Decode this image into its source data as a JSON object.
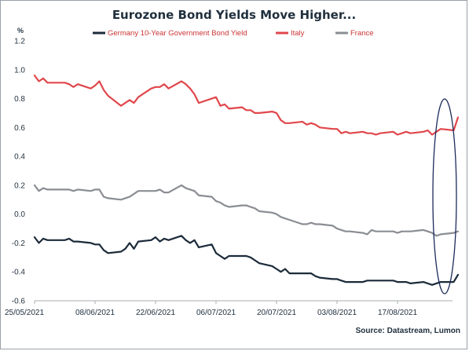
{
  "chart_data": {
    "type": "line",
    "title": "Eurozone Bond Yields Move Higher...",
    "ylabel": "%",
    "source": "Source: Datastream, Lumon",
    "ylim": [
      -0.6,
      1.2
    ],
    "yticks": [
      "1.2",
      "1.0",
      "0.8",
      "0.6",
      "0.4",
      "0.2",
      "0.0",
      "-0.2",
      "-0.4",
      "-0.6"
    ],
    "ytick_values": [
      1.2,
      1.0,
      0.8,
      0.6,
      0.4,
      0.2,
      0.0,
      -0.2,
      -0.4,
      -0.6
    ],
    "xlim": [
      "2021-05-25",
      "2021-08-31"
    ],
    "xticks": [
      "25/05/2021",
      "08/06/2021",
      "22/06/2021",
      "06/07/2021",
      "20/07/2021",
      "03/08/2021",
      "17/08/2021"
    ],
    "xtick_dates": [
      "2021-05-25",
      "2021-06-08",
      "2021-06-22",
      "2021-07-06",
      "2021-07-20",
      "2021-08-03",
      "2021-08-17"
    ],
    "grid": false,
    "legend_position": "top",
    "highlight": "ellipse around latest values",
    "series": [
      {
        "name": "Germany 10-Year Government Bond Yield",
        "color": "#1c2b3a",
        "x": [
          "2021-05-25",
          "2021-05-26",
          "2021-05-27",
          "2021-05-28",
          "2021-05-31",
          "2021-06-01",
          "2021-06-02",
          "2021-06-03",
          "2021-06-04",
          "2021-06-07",
          "2021-06-08",
          "2021-06-09",
          "2021-06-10",
          "2021-06-11",
          "2021-06-14",
          "2021-06-15",
          "2021-06-16",
          "2021-06-17",
          "2021-06-18",
          "2021-06-21",
          "2021-06-22",
          "2021-06-23",
          "2021-06-24",
          "2021-06-25",
          "2021-06-28",
          "2021-06-29",
          "2021-06-30",
          "2021-07-01",
          "2021-07-02",
          "2021-07-05",
          "2021-07-06",
          "2021-07-07",
          "2021-07-08",
          "2021-07-09",
          "2021-07-12",
          "2021-07-13",
          "2021-07-14",
          "2021-07-15",
          "2021-07-16",
          "2021-07-19",
          "2021-07-20",
          "2021-07-21",
          "2021-07-22",
          "2021-07-23",
          "2021-07-26",
          "2021-07-27",
          "2021-07-28",
          "2021-07-29",
          "2021-07-30",
          "2021-08-02",
          "2021-08-03",
          "2021-08-04",
          "2021-08-05",
          "2021-08-06",
          "2021-08-09",
          "2021-08-10",
          "2021-08-11",
          "2021-08-12",
          "2021-08-13",
          "2021-08-16",
          "2021-08-17",
          "2021-08-18",
          "2021-08-19",
          "2021-08-20",
          "2021-08-23",
          "2021-08-24",
          "2021-08-25",
          "2021-08-26",
          "2021-08-27",
          "2021-08-30",
          "2021-08-31"
        ],
        "values": [
          -0.16,
          -0.2,
          -0.17,
          -0.18,
          -0.18,
          -0.18,
          -0.17,
          -0.19,
          -0.19,
          -0.2,
          -0.21,
          -0.21,
          -0.25,
          -0.27,
          -0.26,
          -0.24,
          -0.2,
          -0.24,
          -0.19,
          -0.18,
          -0.16,
          -0.19,
          -0.17,
          -0.18,
          -0.15,
          -0.18,
          -0.2,
          -0.18,
          -0.23,
          -0.21,
          -0.27,
          -0.29,
          -0.31,
          -0.29,
          -0.29,
          -0.29,
          -0.3,
          -0.32,
          -0.34,
          -0.36,
          -0.38,
          -0.4,
          -0.38,
          -0.41,
          -0.41,
          -0.41,
          -0.41,
          -0.43,
          -0.44,
          -0.45,
          -0.45,
          -0.46,
          -0.47,
          -0.47,
          -0.47,
          -0.46,
          -0.46,
          -0.46,
          -0.46,
          -0.46,
          -0.47,
          -0.47,
          -0.47,
          -0.48,
          -0.47,
          -0.48,
          -0.49,
          -0.48,
          -0.47,
          -0.47,
          -0.42
        ]
      },
      {
        "name": "Italy",
        "color": "#e0474c",
        "x": [
          "2021-05-25",
          "2021-05-26",
          "2021-05-27",
          "2021-05-28",
          "2021-05-31",
          "2021-06-01",
          "2021-06-02",
          "2021-06-03",
          "2021-06-04",
          "2021-06-07",
          "2021-06-08",
          "2021-06-09",
          "2021-06-10",
          "2021-06-11",
          "2021-06-14",
          "2021-06-15",
          "2021-06-16",
          "2021-06-17",
          "2021-06-18",
          "2021-06-21",
          "2021-06-22",
          "2021-06-23",
          "2021-06-24",
          "2021-06-25",
          "2021-06-28",
          "2021-06-29",
          "2021-06-30",
          "2021-07-01",
          "2021-07-02",
          "2021-07-05",
          "2021-07-06",
          "2021-07-07",
          "2021-07-08",
          "2021-07-09",
          "2021-07-12",
          "2021-07-13",
          "2021-07-14",
          "2021-07-15",
          "2021-07-16",
          "2021-07-19",
          "2021-07-20",
          "2021-07-21",
          "2021-07-22",
          "2021-07-23",
          "2021-07-26",
          "2021-07-27",
          "2021-07-28",
          "2021-07-29",
          "2021-07-30",
          "2021-08-02",
          "2021-08-03",
          "2021-08-04",
          "2021-08-05",
          "2021-08-06",
          "2021-08-09",
          "2021-08-10",
          "2021-08-11",
          "2021-08-12",
          "2021-08-13",
          "2021-08-16",
          "2021-08-17",
          "2021-08-18",
          "2021-08-19",
          "2021-08-20",
          "2021-08-23",
          "2021-08-24",
          "2021-08-25",
          "2021-08-26",
          "2021-08-27",
          "2021-08-30",
          "2021-08-31"
        ],
        "values": [
          0.96,
          0.92,
          0.94,
          0.91,
          0.91,
          0.91,
          0.9,
          0.88,
          0.9,
          0.87,
          0.89,
          0.92,
          0.86,
          0.82,
          0.75,
          0.77,
          0.79,
          0.77,
          0.81,
          0.87,
          0.88,
          0.88,
          0.9,
          0.87,
          0.92,
          0.9,
          0.87,
          0.83,
          0.77,
          0.8,
          0.81,
          0.75,
          0.76,
          0.73,
          0.74,
          0.72,
          0.72,
          0.7,
          0.7,
          0.71,
          0.7,
          0.65,
          0.63,
          0.63,
          0.64,
          0.62,
          0.63,
          0.62,
          0.6,
          0.59,
          0.59,
          0.56,
          0.57,
          0.56,
          0.57,
          0.56,
          0.56,
          0.55,
          0.56,
          0.57,
          0.55,
          0.56,
          0.57,
          0.56,
          0.57,
          0.58,
          0.55,
          0.57,
          0.59,
          0.58,
          0.67
        ]
      },
      {
        "name": "France",
        "color": "#8a8d93",
        "x": [
          "2021-05-25",
          "2021-05-26",
          "2021-05-27",
          "2021-05-28",
          "2021-05-31",
          "2021-06-01",
          "2021-06-02",
          "2021-06-03",
          "2021-06-04",
          "2021-06-07",
          "2021-06-08",
          "2021-06-09",
          "2021-06-10",
          "2021-06-11",
          "2021-06-14",
          "2021-06-15",
          "2021-06-16",
          "2021-06-17",
          "2021-06-18",
          "2021-06-21",
          "2021-06-22",
          "2021-06-23",
          "2021-06-24",
          "2021-06-25",
          "2021-06-28",
          "2021-06-29",
          "2021-06-30",
          "2021-07-01",
          "2021-07-02",
          "2021-07-05",
          "2021-07-06",
          "2021-07-07",
          "2021-07-08",
          "2021-07-09",
          "2021-07-12",
          "2021-07-13",
          "2021-07-14",
          "2021-07-15",
          "2021-07-16",
          "2021-07-19",
          "2021-07-20",
          "2021-07-21",
          "2021-07-22",
          "2021-07-23",
          "2021-07-26",
          "2021-07-27",
          "2021-07-28",
          "2021-07-29",
          "2021-07-30",
          "2021-08-02",
          "2021-08-03",
          "2021-08-04",
          "2021-08-05",
          "2021-08-06",
          "2021-08-09",
          "2021-08-10",
          "2021-08-11",
          "2021-08-12",
          "2021-08-13",
          "2021-08-16",
          "2021-08-17",
          "2021-08-18",
          "2021-08-19",
          "2021-08-20",
          "2021-08-23",
          "2021-08-24",
          "2021-08-25",
          "2021-08-26",
          "2021-08-27",
          "2021-08-30",
          "2021-08-31"
        ],
        "values": [
          0.2,
          0.16,
          0.18,
          0.17,
          0.17,
          0.17,
          0.17,
          0.16,
          0.17,
          0.16,
          0.17,
          0.17,
          0.12,
          0.11,
          0.1,
          0.11,
          0.12,
          0.14,
          0.16,
          0.16,
          0.16,
          0.17,
          0.15,
          0.15,
          0.2,
          0.18,
          0.17,
          0.16,
          0.13,
          0.12,
          0.09,
          0.08,
          0.06,
          0.05,
          0.06,
          0.06,
          0.05,
          0.04,
          0.02,
          0.01,
          0.0,
          -0.02,
          -0.03,
          -0.04,
          -0.07,
          -0.07,
          -0.06,
          -0.07,
          -0.07,
          -0.08,
          -0.1,
          -0.11,
          -0.12,
          -0.12,
          -0.13,
          -0.14,
          -0.11,
          -0.12,
          -0.12,
          -0.12,
          -0.13,
          -0.12,
          -0.12,
          -0.12,
          -0.11,
          -0.12,
          -0.13,
          -0.15,
          -0.14,
          -0.13,
          -0.12
        ]
      }
    ]
  },
  "colors": {
    "text": "#1f2f3d",
    "axis": "#a8acb2",
    "legend_text": "#cc3333",
    "highlight": "#1c2b5a"
  }
}
